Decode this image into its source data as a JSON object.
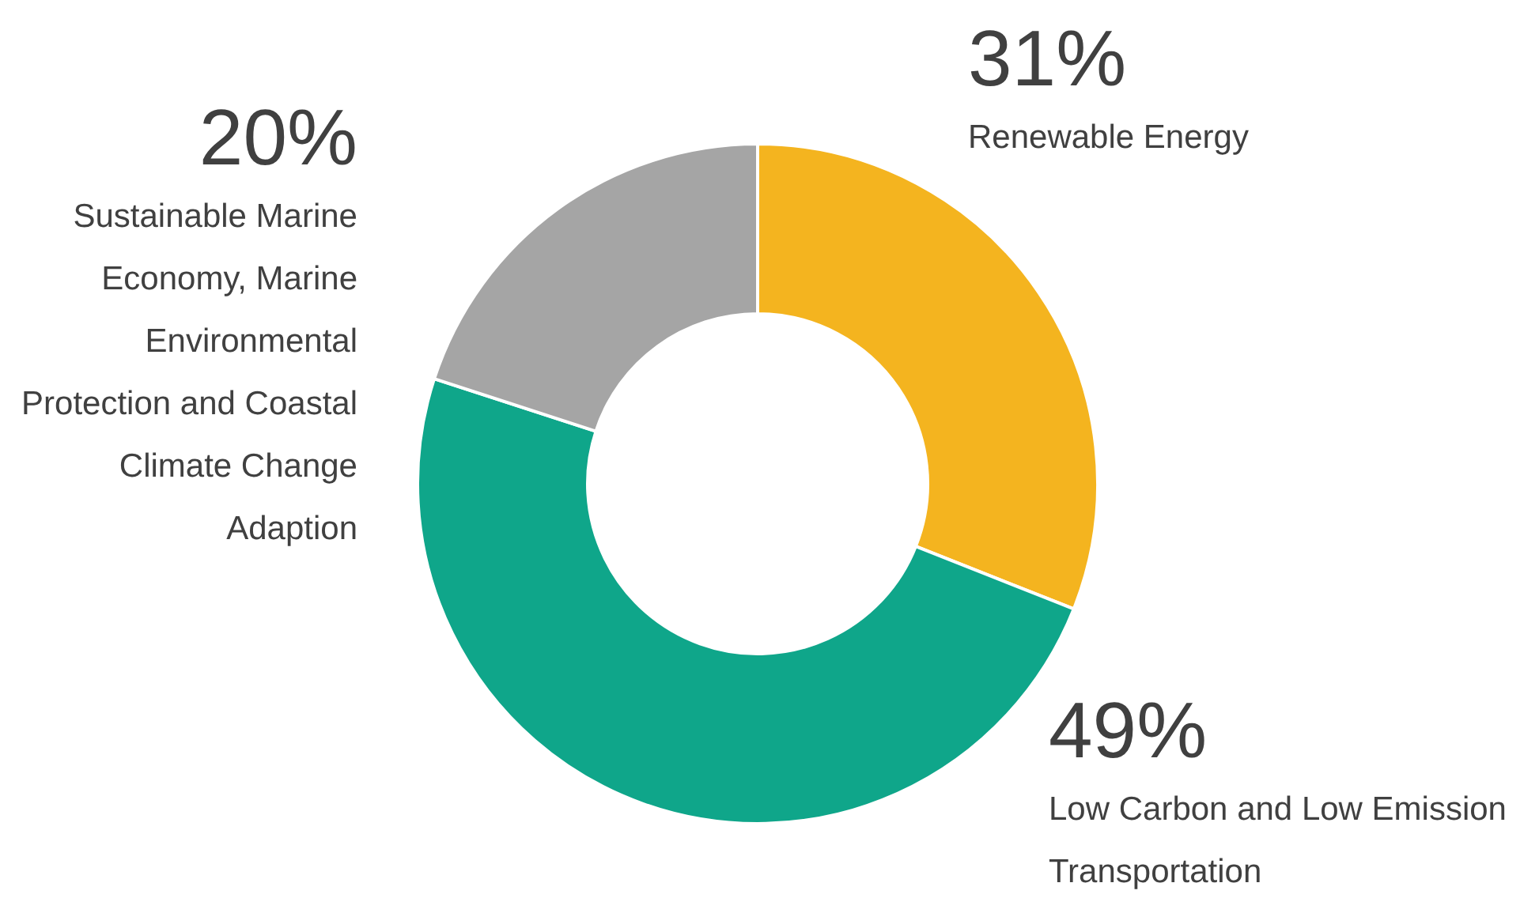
{
  "chart_data": {
    "type": "donut",
    "categories": [
      "Renewable Energy",
      "Low Carbon and Low Emission Transportation",
      "Sustainable Marine Economy, Marine Environmental Protection and Coastal Climate Change Adaption"
    ],
    "values": [
      31,
      49,
      20
    ],
    "value_labels": [
      "31%",
      "49%",
      "20%"
    ],
    "colors": [
      "#f4b41f",
      "#0fa68a",
      "#a5a5a5"
    ],
    "legend": false
  }
}
